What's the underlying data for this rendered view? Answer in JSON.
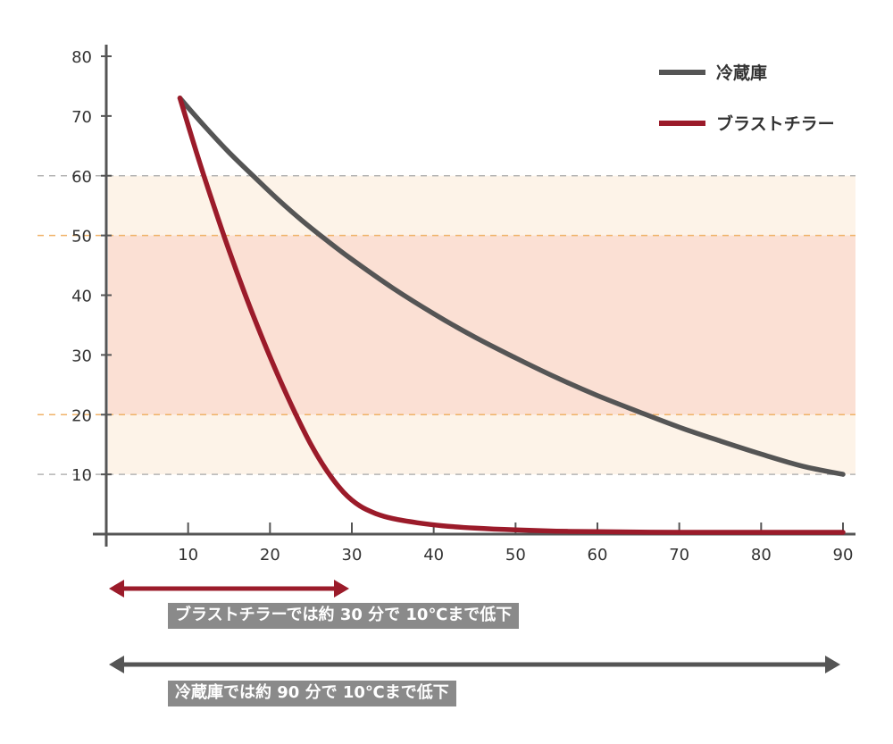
{
  "chart_data": {
    "type": "line",
    "xlim": [
      0,
      90
    ],
    "ylim": [
      0,
      80
    ],
    "x_ticks": [
      "10",
      "20",
      "30",
      "40",
      "50",
      "60",
      "70",
      "80",
      "90"
    ],
    "y_ticks": [
      "10",
      "20",
      "30",
      "40",
      "50",
      "60",
      "70",
      "80"
    ],
    "bands": [
      {
        "from": 10,
        "to": 60,
        "color": "#fdf3e8"
      },
      {
        "from": 20,
        "to": 50,
        "color": "#fbe0d4"
      }
    ],
    "reference_lines": [
      {
        "y": 60,
        "color": "#b5b5b5"
      },
      {
        "y": 50,
        "color": "#f0b267"
      },
      {
        "y": 20,
        "color": "#f0b267"
      },
      {
        "y": 10,
        "color": "#b5b5b5"
      }
    ],
    "series": [
      {
        "name": "冷蔵庫",
        "color": "#555555",
        "x": [
          9,
          12,
          15,
          18,
          21,
          24,
          27,
          30,
          35,
          40,
          45,
          50,
          55,
          60,
          65,
          70,
          75,
          80,
          85,
          90
        ],
        "y": [
          73,
          68.3,
          63.9,
          59.9,
          56.0,
          52.4,
          49.1,
          46.0,
          41.2,
          36.9,
          33.0,
          29.5,
          26.2,
          23.2,
          20.5,
          17.9,
          15.6,
          13.4,
          11.4,
          10
        ]
      },
      {
        "name": "ブラストチラー",
        "color": "#9b1b2a",
        "x": [
          9,
          11,
          13,
          15,
          17,
          19,
          21,
          23,
          25,
          27,
          29,
          31,
          33,
          35,
          38,
          41,
          45,
          50,
          55,
          60,
          70,
          80,
          90
        ],
        "y": [
          73,
          64,
          55.5,
          47.5,
          40,
          33,
          26.5,
          20.5,
          15,
          10.5,
          7,
          4.7,
          3.4,
          2.6,
          1.9,
          1.4,
          1.0,
          0.7,
          0.5,
          0.4,
          0.3,
          0.3,
          0.3
        ]
      }
    ],
    "legend": "top-right",
    "annotations": [
      {
        "text": "ブラストチラーでは約 30 分で 10℃まで低下",
        "x_from": 0,
        "x_to": 30,
        "color": "#9b1b2a"
      },
      {
        "text": "冷蔵庫では約 90 分で 10℃まで低下",
        "x_from": 0,
        "x_to": 90,
        "color": "#555555"
      }
    ]
  },
  "legend": {
    "items": [
      {
        "label": "冷蔵庫",
        "color": "#555555"
      },
      {
        "label": "ブラストチラー",
        "color": "#9b1b2a"
      }
    ]
  },
  "notes": {
    "blast": "ブラストチラーでは約 30 分で 10℃まで低下",
    "fridge": "冷蔵庫では約 90 分で 10℃まで低下"
  }
}
